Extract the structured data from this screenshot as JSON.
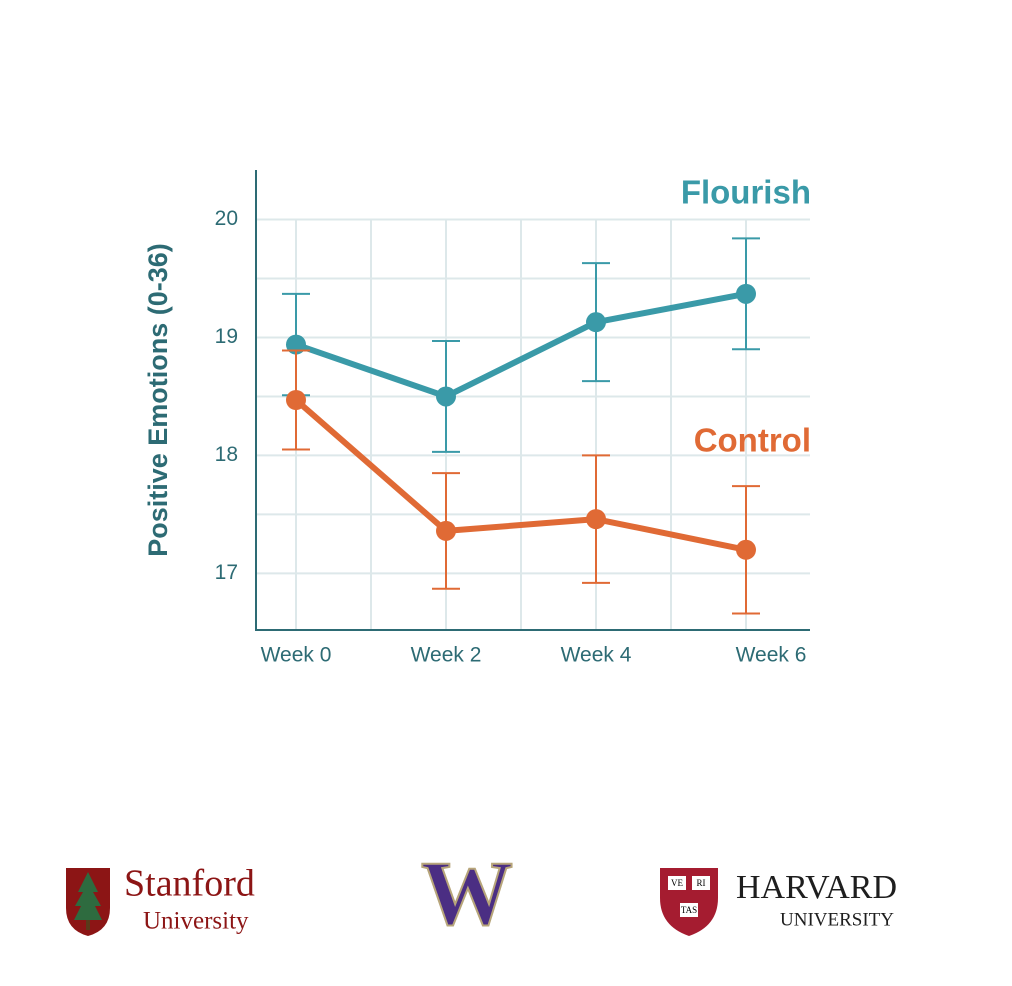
{
  "chart_data": {
    "type": "line",
    "y_label": "Positive Emotions (0-36)",
    "categories": [
      "Week 0",
      "Week 2",
      "Week 4",
      "Week 6"
    ],
    "series": [
      {
        "name": "Flourish",
        "color": "#3a9aa8",
        "values": [
          18.94,
          18.5,
          19.13,
          19.37
        ],
        "errors": [
          0.43,
          0.47,
          0.5,
          0.47
        ]
      },
      {
        "name": "Control",
        "color": "#e06a35",
        "values": [
          18.47,
          17.36,
          17.46,
          17.2
        ],
        "errors": [
          0.42,
          0.49,
          0.54,
          0.54
        ]
      }
    ],
    "ylim": [
      16.52,
      20.42
    ],
    "yticks": [
      17,
      18,
      19,
      20
    ],
    "minor_yticks": [
      17.5,
      18.5,
      19.5
    ],
    "grid": true
  },
  "logos": {
    "stanford": {
      "name": "Stanford",
      "sub": "University"
    },
    "washington": {
      "letter": "W"
    },
    "harvard": {
      "name": "HARVARD",
      "sub": "UNIVERSITY",
      "shield": [
        "VE",
        "RI",
        "TAS"
      ]
    }
  }
}
